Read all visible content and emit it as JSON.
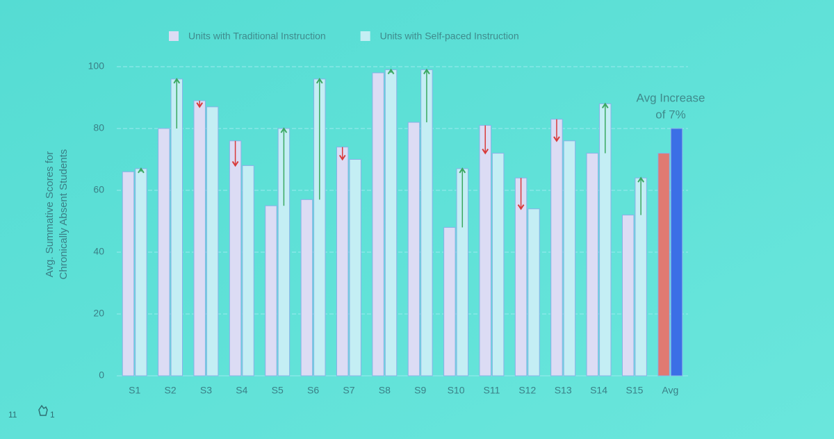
{
  "chart_data": {
    "type": "bar",
    "legend": "top",
    "ylabel": [
      "Avg. Summative Scores for",
      "Chronically Absent Students"
    ],
    "categories": [
      "S1",
      "S2",
      "S3",
      "S4",
      "S5",
      "S6",
      "S7",
      "S8",
      "S9",
      "S10",
      "S11",
      "S12",
      "S13",
      "S14",
      "S15",
      "Avg"
    ],
    "series": [
      {
        "name": "Units with Traditional Instruction",
        "color": "#dcdcf4",
        "colors": [
          "#dcdcf4",
          "#dcdcf4",
          "#dcdcf4",
          "#dcdcf4",
          "#dcdcf4",
          "#dcdcf4",
          "#dcdcf4",
          "#dcdcf4",
          "#dcdcf4",
          "#dcdcf4",
          "#dcdcf4",
          "#dcdcf4",
          "#dcdcf4",
          "#dcdcf4",
          "#dcdcf4",
          "#e07a72"
        ],
        "values": [
          66,
          80,
          89,
          76,
          55,
          57,
          74,
          98,
          82,
          48,
          81,
          64,
          83,
          72,
          52,
          72
        ]
      },
      {
        "name": "Units with Self-paced Instruction",
        "color": "#c4eef4",
        "colors": [
          "#c4eef4",
          "#c4eef4",
          "#c4eef4",
          "#c4eef4",
          "#c4eef4",
          "#c4eef4",
          "#c4eef4",
          "#c4eef4",
          "#c4eef4",
          "#c4eef4",
          "#c4eef4",
          "#c4eef4",
          "#c4eef4",
          "#c4eef4",
          "#c4eef4",
          "#3b6fe6"
        ],
        "values": [
          67,
          96,
          87,
          68,
          80,
          96,
          70,
          99,
          99,
          67,
          72,
          54,
          76,
          88,
          64,
          80
        ]
      }
    ],
    "annotation": [
      "Avg Increase",
      "of 7%"
    ],
    "ylim": [
      0,
      100
    ],
    "yticks": [
      0,
      20,
      40,
      60,
      80,
      100
    ],
    "grid": true
  },
  "footer": {
    "page": "11",
    "count": "1"
  }
}
